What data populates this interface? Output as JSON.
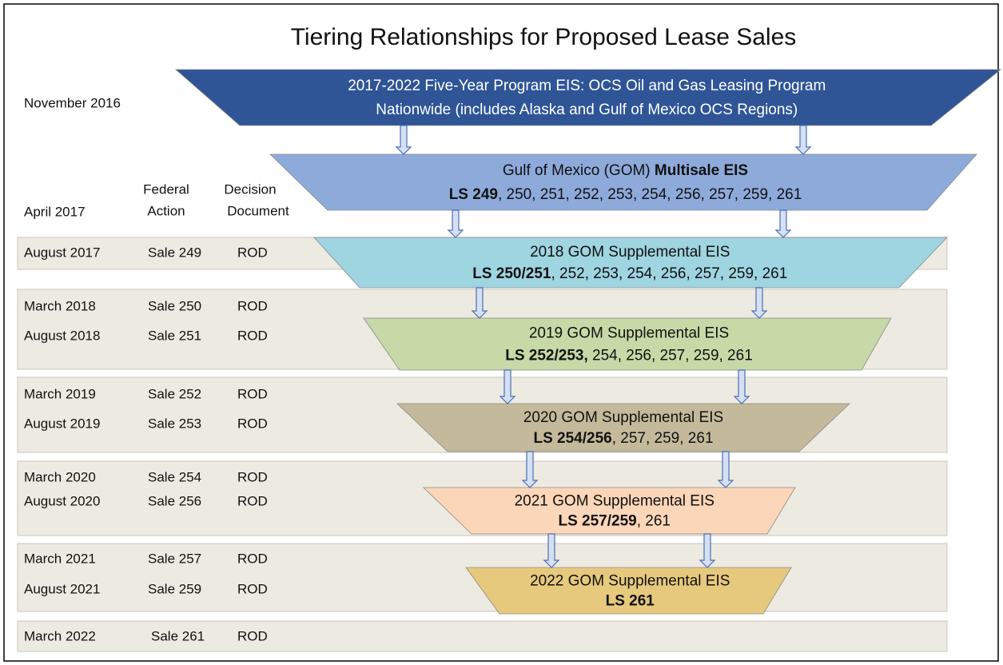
{
  "title": "Tiering Relationships for Proposed Lease Sales",
  "timeline_labels": [
    "November 2016",
    "April 2017"
  ],
  "headers": {
    "federal_action": [
      "Federal",
      "Action"
    ],
    "decision_document": [
      "Decision",
      "Document"
    ]
  },
  "levels": [
    {
      "color": "#2f5597",
      "text_color": "#ffffff",
      "lines": [
        [
          {
            "text": "2017-2022  Five-Year Program EIS: OCS Oil and Gas Leasing Program",
            "bold": false
          }
        ],
        [
          {
            "text": "Nationwide (includes Alaska and Gulf of Mexico OCS Regions)",
            "bold": false
          }
        ]
      ]
    },
    {
      "color": "#8eaadb",
      "text_color": "#111111",
      "lines": [
        [
          {
            "text": "Gulf of Mexico (GOM) ",
            "bold": false
          },
          {
            "text": "Multisale EIS",
            "bold": true
          }
        ],
        [
          {
            "text": "LS 249",
            "bold": true
          },
          {
            "text": ", 250, 251, 252, 253, 254, 256, 257, 259, 261",
            "bold": false
          }
        ]
      ]
    },
    {
      "color": "#9fd4e1",
      "text_color": "#111111",
      "lines": [
        [
          {
            "text": "2018 GOM Supplemental EIS",
            "bold": false
          }
        ],
        [
          {
            "text": "LS 250/251",
            "bold": true
          },
          {
            "text": ", 252, 253, 254, 256, 257, 259, 261",
            "bold": false
          }
        ]
      ]
    },
    {
      "color": "#c6d9a7",
      "text_color": "#111111",
      "lines": [
        [
          {
            "text": "2019 GOM Supplemental EIS",
            "bold": false
          }
        ],
        [
          {
            "text": "LS 252/253,",
            "bold": true
          },
          {
            "text": " 254, 256, 257, 259, 261",
            "bold": false
          }
        ]
      ]
    },
    {
      "color": "#c4ba9b",
      "text_color": "#111111",
      "lines": [
        [
          {
            "text": "2020 GOM Supplemental EIS",
            "bold": false
          }
        ],
        [
          {
            "text": "LS 254/256",
            "bold": true
          },
          {
            "text": ", 257, 259, 261",
            "bold": false
          }
        ]
      ]
    },
    {
      "color": "#fbd6b8",
      "text_color": "#111111",
      "lines": [
        [
          {
            "text": "2021 GOM Supplemental EIS",
            "bold": false
          }
        ],
        [
          {
            "text": "LS 257/259",
            "bold": true
          },
          {
            "text": ", 261",
            "bold": false
          }
        ]
      ]
    },
    {
      "color": "#e6c97c",
      "text_color": "#111111",
      "lines": [
        [
          {
            "text": "2022 GOM Supplemental EIS",
            "bold": false
          }
        ],
        [
          {
            "text": "LS 261",
            "bold": true
          }
        ]
      ]
    }
  ],
  "bands": [
    [
      [
        "August 2017",
        "Sale 249",
        "ROD"
      ]
    ],
    [
      [
        "March 2018",
        "Sale 250",
        "ROD"
      ],
      [
        "August 2018",
        "Sale 251",
        "ROD"
      ]
    ],
    [
      [
        "March 2019",
        "Sale 252",
        "ROD"
      ],
      [
        "August 2019",
        "Sale 253",
        "ROD"
      ]
    ],
    [
      [
        "March 2020",
        "Sale 254",
        "ROD"
      ],
      [
        "August 2020",
        "Sale 256",
        "ROD"
      ]
    ],
    [
      [
        "March 2021",
        "Sale 257",
        "ROD"
      ],
      [
        "August 2021",
        "Sale 259",
        "ROD"
      ]
    ],
    [
      [
        "March 2022",
        "Sale 261",
        "ROD"
      ]
    ]
  ]
}
